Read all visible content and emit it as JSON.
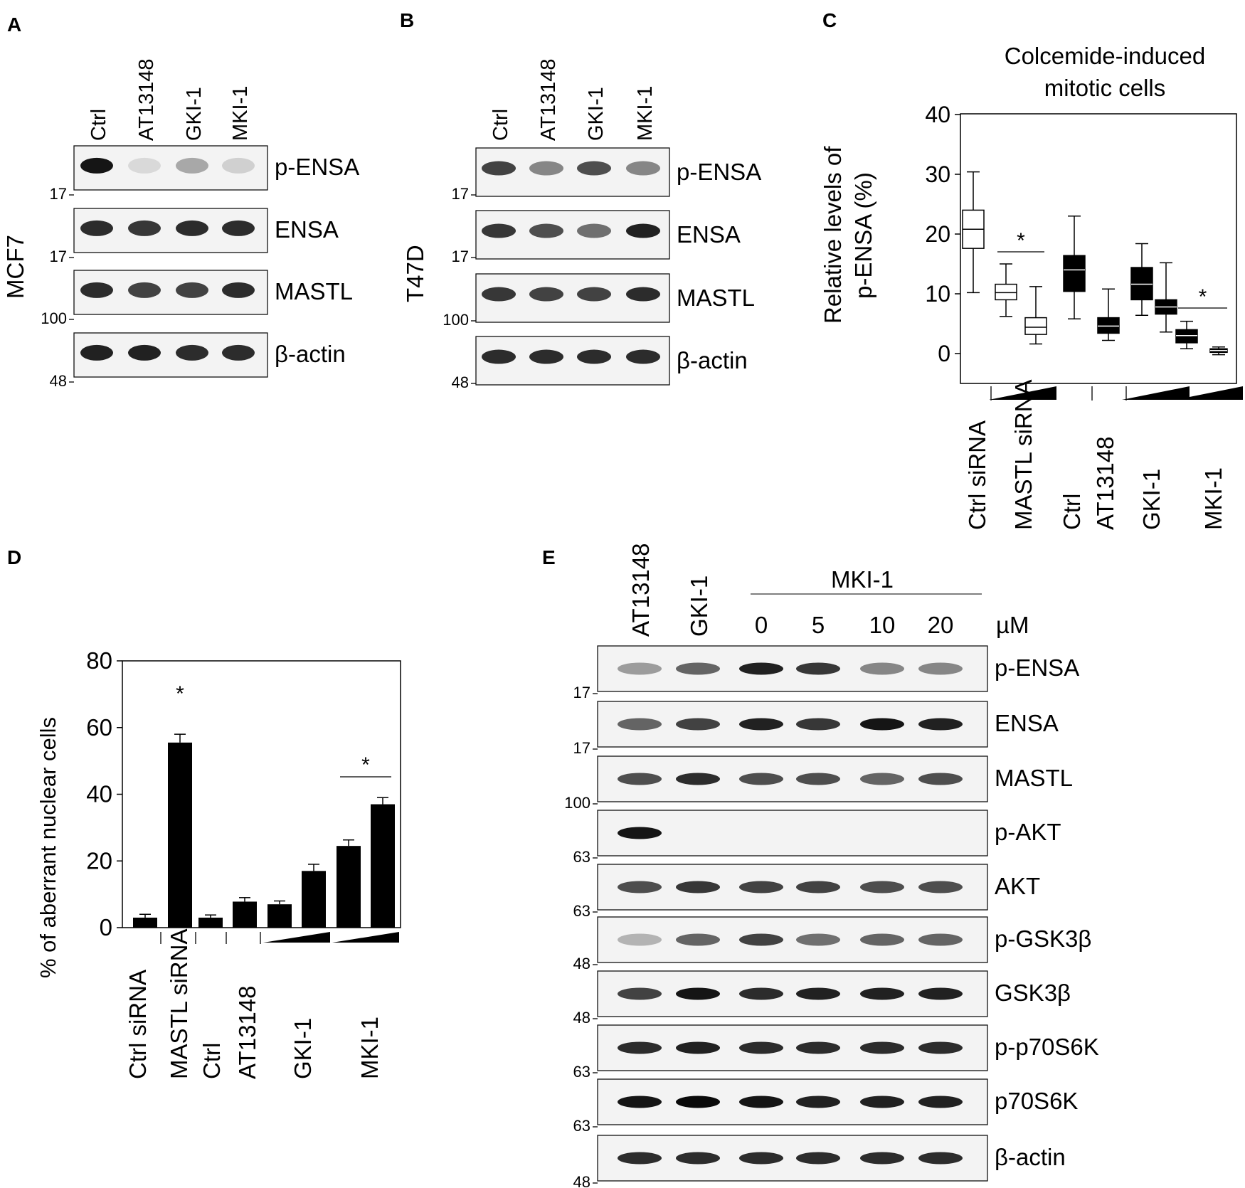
{
  "panels": {
    "A": {
      "letter": "A",
      "cell_line": "MCF7",
      "lanes": [
        "Ctrl",
        "AT13148",
        "GKI-1",
        "MKI-1"
      ],
      "blots": [
        {
          "label": "p-ENSA",
          "marker": "17",
          "intensity": [
            0.95,
            0.08,
            0.3,
            0.12
          ]
        },
        {
          "label": "ENSA",
          "marker": "17",
          "intensity": [
            0.85,
            0.8,
            0.85,
            0.85
          ]
        },
        {
          "label": "MASTL",
          "marker": "100",
          "intensity": [
            0.85,
            0.75,
            0.75,
            0.85
          ]
        },
        {
          "label": "β-actin",
          "marker": "48",
          "intensity": [
            0.9,
            0.9,
            0.85,
            0.85
          ]
        }
      ]
    },
    "B": {
      "letter": "B",
      "cell_line": "T47D",
      "lanes": [
        "Ctrl",
        "AT13148",
        "GKI-1",
        "MKI-1"
      ],
      "blots": [
        {
          "label": "p-ENSA",
          "marker": "17",
          "intensity": [
            0.75,
            0.45,
            0.7,
            0.45
          ]
        },
        {
          "label": "ENSA",
          "marker": "17",
          "intensity": [
            0.8,
            0.7,
            0.55,
            0.9
          ]
        },
        {
          "label": "MASTL",
          "marker": "100",
          "intensity": [
            0.8,
            0.75,
            0.75,
            0.85
          ]
        },
        {
          "label": "β-actin",
          "marker": "48",
          "intensity": [
            0.85,
            0.85,
            0.85,
            0.85
          ]
        }
      ]
    },
    "C": {
      "letter": "C"
    },
    "D": {
      "letter": "D"
    },
    "E": {
      "letter": "E",
      "lanes": [
        "AT13148",
        "GKI-1",
        "0",
        "5",
        "10",
        "20"
      ],
      "group_label": "MKI-1",
      "unit": "µM",
      "blots": [
        {
          "label": "p-ENSA",
          "marker": "17",
          "intensity": [
            0.35,
            0.6,
            0.9,
            0.8,
            0.45,
            0.45
          ]
        },
        {
          "label": "ENSA",
          "marker": "17",
          "intensity": [
            0.6,
            0.75,
            0.9,
            0.8,
            0.95,
            0.9
          ]
        },
        {
          "label": "MASTL",
          "marker": "100",
          "intensity": [
            0.7,
            0.85,
            0.7,
            0.7,
            0.6,
            0.7
          ]
        },
        {
          "label": "p-AKT",
          "marker": "63",
          "intensity": [
            0.95,
            0,
            0,
            0,
            0,
            0
          ]
        },
        {
          "label": "AKT",
          "marker": "63",
          "intensity": [
            0.7,
            0.8,
            0.75,
            0.75,
            0.7,
            0.7
          ]
        },
        {
          "label": "p-GSK3β",
          "marker": "48",
          "intensity": [
            0.25,
            0.6,
            0.75,
            0.55,
            0.6,
            0.6
          ]
        },
        {
          "label": "GSK3β",
          "marker": "48",
          "intensity": [
            0.75,
            0.95,
            0.85,
            0.9,
            0.9,
            0.9
          ]
        },
        {
          "label": "p-p70S6K",
          "marker": "63",
          "intensity": [
            0.85,
            0.9,
            0.85,
            0.85,
            0.85,
            0.85
          ]
        },
        {
          "label": "p70S6K",
          "marker": "63",
          "intensity": [
            0.95,
            1.0,
            0.95,
            0.9,
            0.9,
            0.9
          ]
        },
        {
          "label": "β-actin",
          "marker": "48",
          "intensity": [
            0.85,
            0.85,
            0.85,
            0.85,
            0.85,
            0.85
          ]
        }
      ]
    }
  },
  "chart_data": [
    {
      "type": "box",
      "panel": "C",
      "title": "Colcemide-induced mitotic cells",
      "ylabel": "Relative levels of p-ENSA (%)",
      "ylim": [
        -5,
        40
      ],
      "yticks": [
        0,
        10,
        20,
        30,
        40
      ],
      "groups": [
        {
          "label": "Ctrl siRNA"
        },
        {
          "label": "MASTL siRNA",
          "wedge": true
        },
        {
          "label": "Ctrl"
        },
        {
          "label": "AT13148"
        },
        {
          "label": "GKI-1",
          "wedge": true
        },
        {
          "label": "MKI-1",
          "wedge": true
        }
      ],
      "boxes": [
        {
          "group": "Ctrl siRNA",
          "fill": "white",
          "min": 10.2,
          "q1": 17.6,
          "median": 20.8,
          "q3": 24,
          "max": 30.4
        },
        {
          "group": "MASTL siRNA",
          "fill": "white",
          "min": 6.2,
          "q1": 9,
          "median": 10.2,
          "q3": 11.6,
          "max": 15
        },
        {
          "group": "MASTL siRNA",
          "fill": "white",
          "min": 1.6,
          "q1": 3.2,
          "median": 4.4,
          "q3": 6,
          "max": 11.2
        },
        {
          "group": "Ctrl",
          "fill": "black",
          "min": 5.8,
          "q1": 10.4,
          "median": 14,
          "q3": 16.4,
          "max": 23
        },
        {
          "group": "AT13148",
          "fill": "black",
          "min": 2.2,
          "q1": 3.4,
          "median": 4.6,
          "q3": 6,
          "max": 10.8
        },
        {
          "group": "GKI-1",
          "fill": "black",
          "min": 6.4,
          "q1": 9,
          "median": 11.6,
          "q3": 14.4,
          "max": 18.4
        },
        {
          "group": "GKI-1",
          "fill": "black",
          "min": 3.6,
          "q1": 6.6,
          "median": 7.8,
          "q3": 9,
          "max": 15.2
        },
        {
          "group": "MKI-1",
          "fill": "black",
          "min": 0.8,
          "q1": 1.8,
          "median": 3,
          "q3": 4,
          "max": 5.4
        },
        {
          "group": "MKI-1",
          "fill": "black",
          "min": -0.2,
          "q1": 0.2,
          "median": 0.5,
          "q3": 0.8,
          "max": 1.1
        }
      ],
      "significance": [
        {
          "between": [
            1,
            2
          ],
          "label": "*"
        },
        {
          "between": [
            7,
            8
          ],
          "label": "*"
        }
      ]
    },
    {
      "type": "bar",
      "panel": "D",
      "ylabel": "% of aberrant nuclear cells",
      "ylim": [
        0,
        80
      ],
      "yticks": [
        0,
        20,
        40,
        60,
        80
      ],
      "groups": [
        {
          "label": "Ctrl siRNA",
          "bars": [
            0
          ]
        },
        {
          "label": "MASTL siRNA",
          "bars": [
            1
          ]
        },
        {
          "label": "Ctrl",
          "bars": [
            2
          ]
        },
        {
          "label": "AT13148",
          "bars": [
            3
          ]
        },
        {
          "label": "GKI-1",
          "bars": [
            4,
            5
          ],
          "wedge": true
        },
        {
          "label": "MKI-1",
          "bars": [
            6,
            7
          ],
          "wedge": true
        }
      ],
      "values": [
        3,
        55.5,
        3,
        7.8,
        7,
        17,
        24.5,
        37
      ],
      "errors": [
        1,
        2.5,
        0.8,
        1.2,
        1,
        2,
        1.8,
        2
      ],
      "significance": [
        {
          "bar": 1,
          "label": "*"
        },
        {
          "between": [
            6,
            7
          ],
          "label": "*"
        }
      ]
    }
  ]
}
